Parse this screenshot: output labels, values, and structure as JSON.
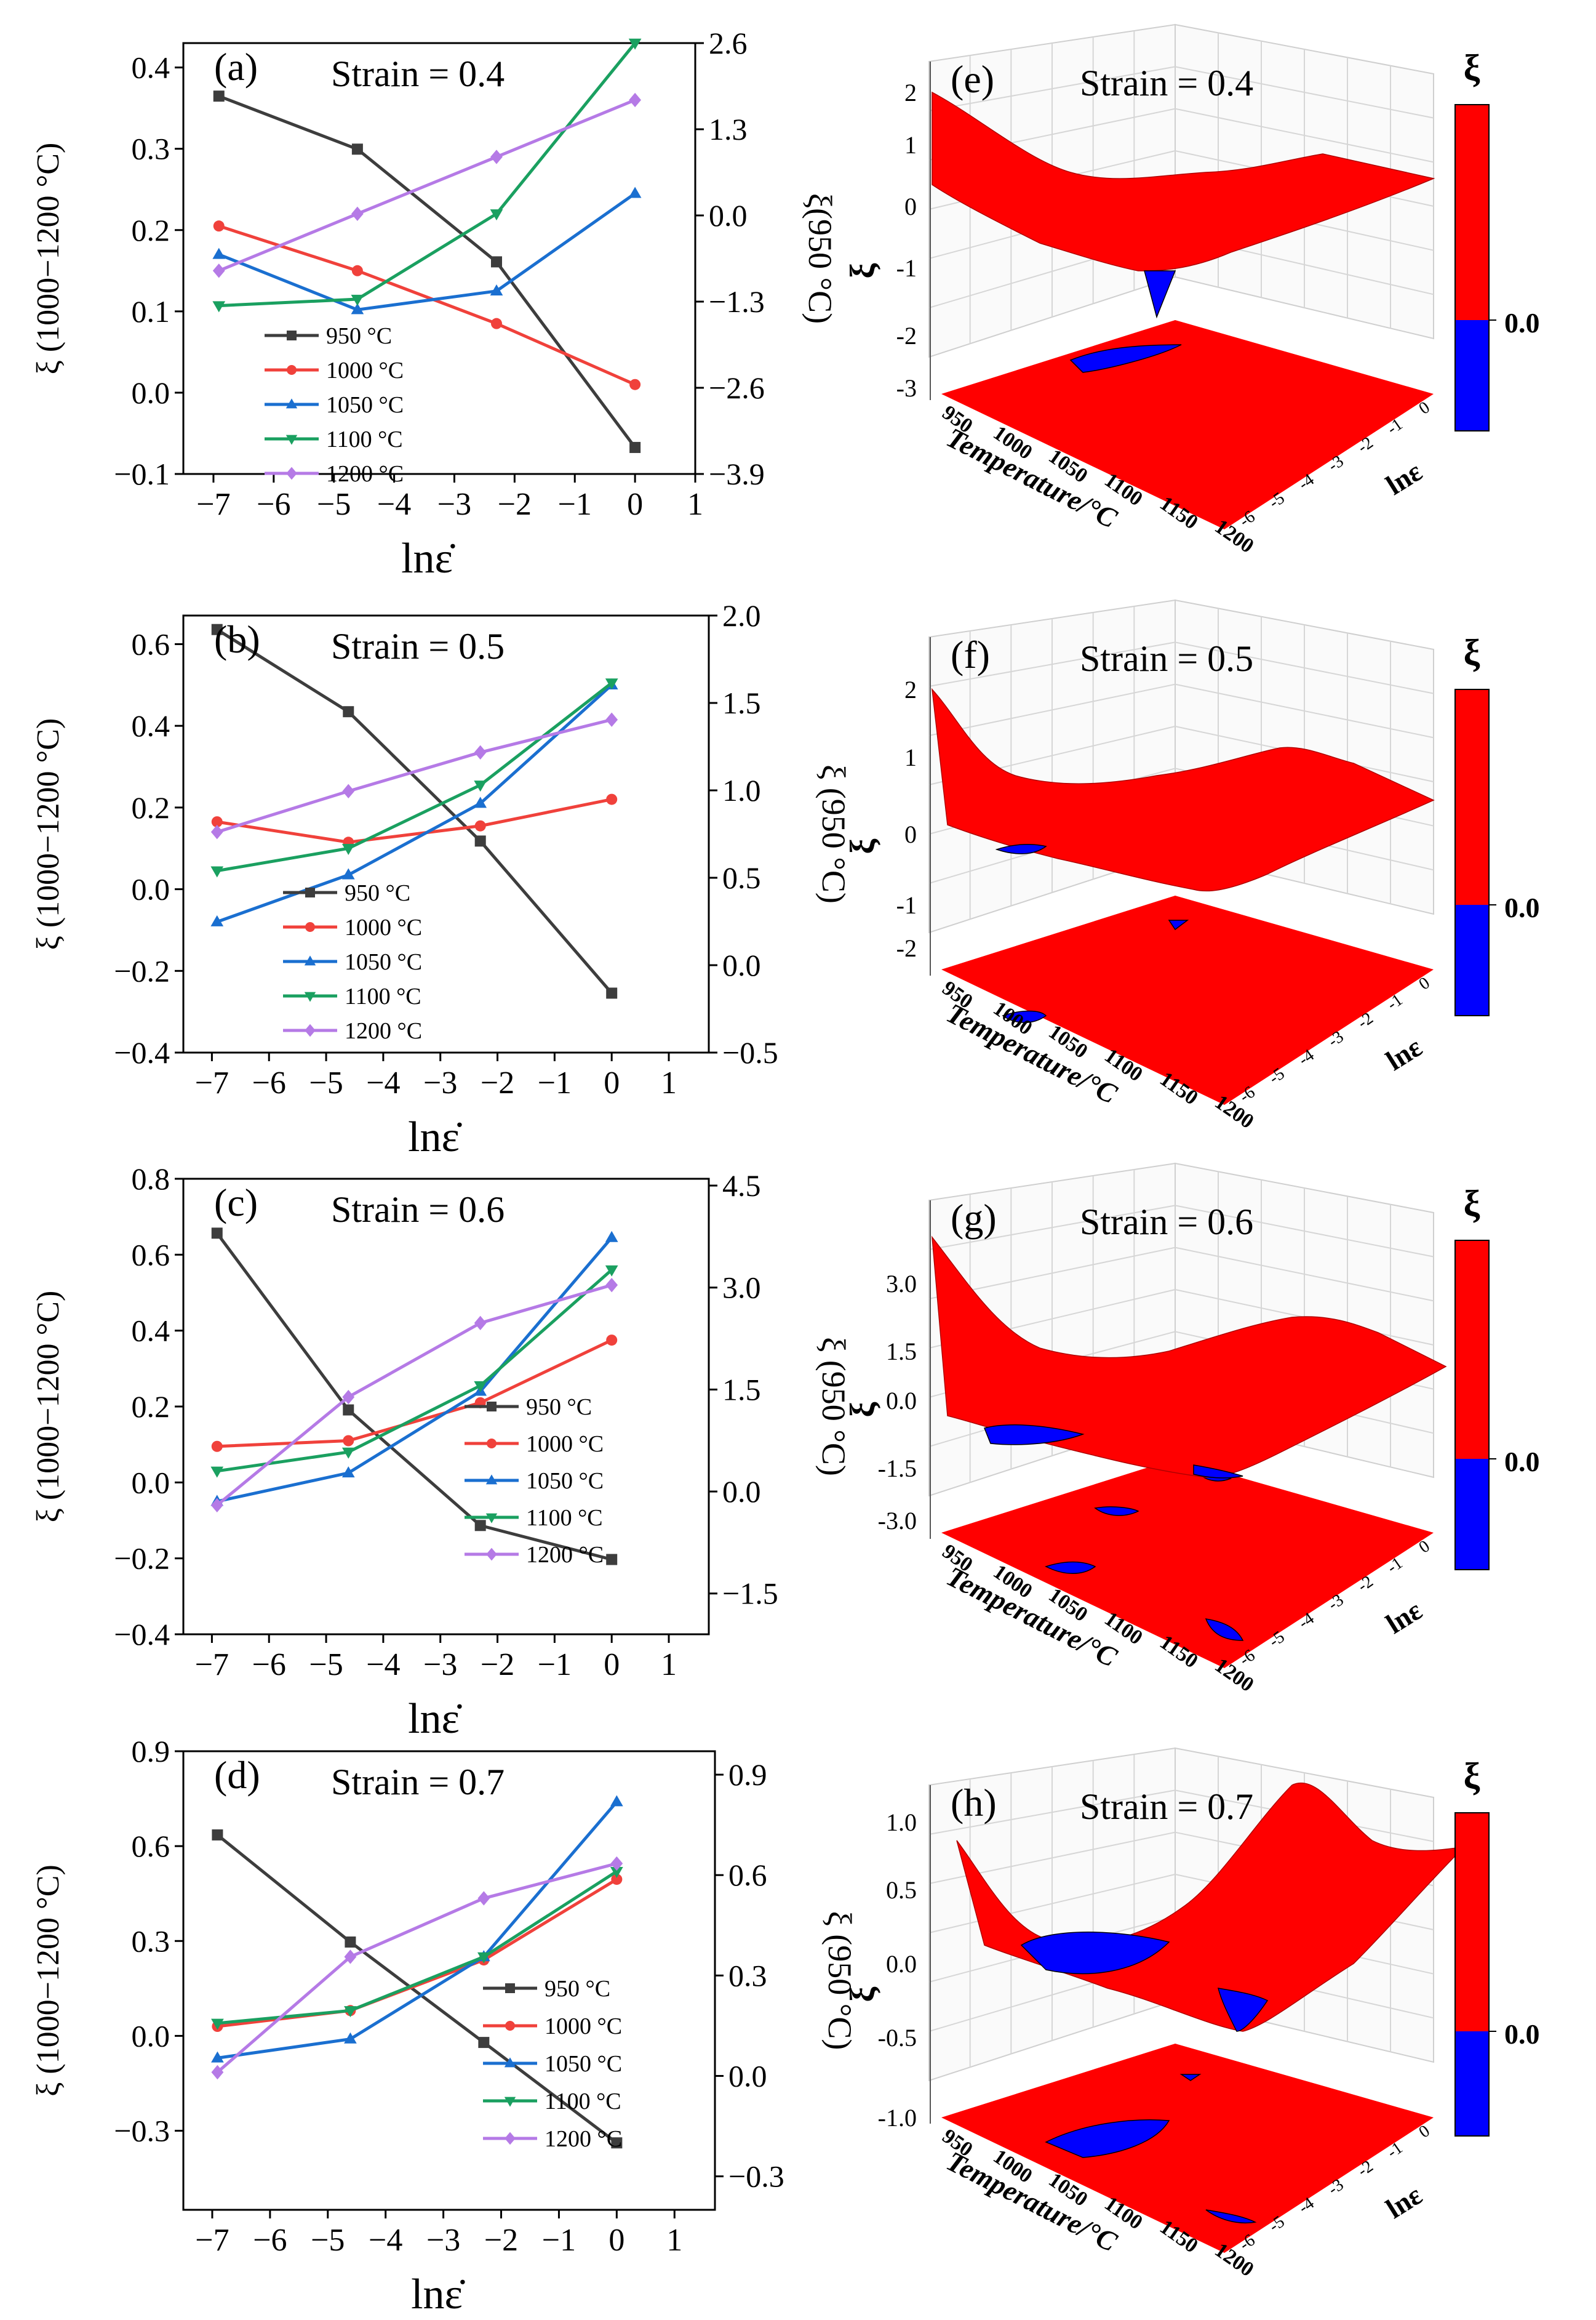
{
  "chart_data": [
    {
      "panel": "(a)",
      "type": "line",
      "title": "Strain = 0.4",
      "xlabel": "lnε̇",
      "ylabel_left": "ξ (1000−1200 °C)",
      "ylabel_right": "ξ(950 °C)",
      "xlim": [
        -7.5,
        1
      ],
      "xticks": [
        "−7",
        "−6",
        "−5",
        "−4",
        "−3",
        "−2",
        "−1",
        "0",
        "1"
      ],
      "ylim": [
        -0.1,
        0.43
      ],
      "yticks": [
        -0.1,
        0.0,
        0.1,
        0.2,
        0.3,
        0.4
      ],
      "ytick_labels": [
        "−0.1",
        "0.0",
        "0.1",
        "0.2",
        "0.3",
        "0.4"
      ],
      "ylim_right": [
        -3.9,
        2.6
      ],
      "yticks_right": [
        -3.9,
        -2.6,
        -1.3,
        0.0,
        1.3,
        2.6
      ],
      "ytick_right_labels": [
        "−3.9",
        "−2.6",
        "−1.3",
        "0.0",
        "1.3",
        "2.6"
      ],
      "x": [
        -6.91,
        -4.61,
        -2.3,
        0.0
      ],
      "legend_position": "bottom-center",
      "series": [
        {
          "name": "950 °C",
          "axis": "right",
          "color": "#3d3d3d",
          "marker": "square",
          "values": [
            1.8,
            1.0,
            -0.7,
            -3.5
          ]
        },
        {
          "name": "1000 °C",
          "axis": "left",
          "color": "#f0413b",
          "marker": "circle",
          "values": [
            0.205,
            0.15,
            0.085,
            0.01
          ]
        },
        {
          "name": "1050 °C",
          "axis": "left",
          "color": "#1a6fd0",
          "marker": "triangle-up",
          "values": [
            0.17,
            0.102,
            0.125,
            0.245
          ]
        },
        {
          "name": "1100 °C",
          "axis": "left",
          "color": "#1aa060",
          "marker": "triangle-down",
          "values": [
            0.107,
            0.115,
            0.22,
            0.43
          ]
        },
        {
          "name": "1200 °C",
          "axis": "left",
          "color": "#b57ae6",
          "marker": "diamond",
          "values": [
            0.15,
            0.22,
            0.29,
            0.36
          ]
        }
      ]
    },
    {
      "panel": "(b)",
      "type": "line",
      "title": "Strain = 0.5",
      "xlabel": "lnε̇",
      "ylabel_left": "ξ (1000−1200 °C)",
      "ylabel_right": "ξ (950 °C)",
      "xlim": [
        -7.5,
        1.7
      ],
      "xticks": [
        "−7",
        "−6",
        "−5",
        "−4",
        "−3",
        "−2",
        "−1",
        "0",
        "1"
      ],
      "ylim": [
        -0.4,
        0.67
      ],
      "yticks": [
        -0.4,
        -0.2,
        0.0,
        0.2,
        0.4,
        0.6
      ],
      "ytick_labels": [
        "−0.4",
        "−0.2",
        "0.0",
        "0.2",
        "0.4",
        "0.6"
      ],
      "ylim_right": [
        -0.5,
        2.0
      ],
      "yticks_right": [
        -0.5,
        0.0,
        0.5,
        1.0,
        1.5,
        2.0
      ],
      "ytick_right_labels": [
        "−0.5",
        "0.0",
        "0.5",
        "1.0",
        "1.5",
        "2.0"
      ],
      "x": [
        -6.91,
        -4.61,
        -2.3,
        0.0
      ],
      "legend_position": "bottom-center",
      "series": [
        {
          "name": "950 °C",
          "axis": "right",
          "color": "#3d3d3d",
          "marker": "square",
          "values": [
            1.92,
            1.45,
            0.71,
            -0.16
          ]
        },
        {
          "name": "1000 °C",
          "axis": "left",
          "color": "#f0413b",
          "marker": "circle",
          "values": [
            0.165,
            0.115,
            0.155,
            0.22
          ]
        },
        {
          "name": "1050 °C",
          "axis": "left",
          "color": "#1a6fd0",
          "marker": "triangle-up",
          "values": [
            -0.08,
            0.035,
            0.21,
            0.5
          ]
        },
        {
          "name": "1100 °C",
          "axis": "left",
          "color": "#1aa060",
          "marker": "triangle-down",
          "values": [
            0.045,
            0.1,
            0.255,
            0.505
          ]
        },
        {
          "name": "1200 °C",
          "axis": "left",
          "color": "#b57ae6",
          "marker": "diamond",
          "values": [
            0.14,
            0.24,
            0.335,
            0.415
          ]
        }
      ]
    },
    {
      "panel": "(c)",
      "type": "line",
      "title": "Strain = 0.6",
      "xlabel": "lnε̇",
      "ylabel_left": "ξ (1000−1200 °C)",
      "ylabel_right": "ξ (950 °C)",
      "xlim": [
        -7.5,
        1.7
      ],
      "xticks": [
        "−7",
        "−6",
        "−5",
        "−4",
        "−3",
        "−2",
        "−1",
        "0",
        "1"
      ],
      "ylim": [
        -0.4,
        0.8
      ],
      "yticks": [
        -0.4,
        -0.2,
        0.0,
        0.2,
        0.4,
        0.6,
        0.8
      ],
      "ytick_labels": [
        "−0.4",
        "−0.2",
        "0.0",
        "0.2",
        "0.4",
        "0.6",
        "0.8"
      ],
      "ylim_right": [
        -2.1,
        4.6
      ],
      "yticks_right": [
        -1.5,
        0.0,
        1.5,
        3.0,
        4.5
      ],
      "ytick_right_labels": [
        "−1.5",
        "0.0",
        "1.5",
        "3.0",
        "4.5"
      ],
      "x": [
        -6.91,
        -4.61,
        -2.3,
        0.0
      ],
      "legend_position": "right-center",
      "series": [
        {
          "name": "950 °C",
          "axis": "right",
          "color": "#3d3d3d",
          "marker": "square",
          "values": [
            3.8,
            1.2,
            -0.5,
            -1.0
          ]
        },
        {
          "name": "1000 °C",
          "axis": "left",
          "color": "#f0413b",
          "marker": "circle",
          "values": [
            0.095,
            0.11,
            0.21,
            0.375
          ]
        },
        {
          "name": "1050 °C",
          "axis": "left",
          "color": "#1a6fd0",
          "marker": "triangle-up",
          "values": [
            -0.05,
            0.025,
            0.24,
            0.645
          ]
        },
        {
          "name": "1100 °C",
          "axis": "left",
          "color": "#1aa060",
          "marker": "triangle-down",
          "values": [
            0.03,
            0.08,
            0.255,
            0.56
          ]
        },
        {
          "name": "1200 °C",
          "axis": "left",
          "color": "#b57ae6",
          "marker": "diamond",
          "values": [
            -0.06,
            0.225,
            0.42,
            0.52
          ]
        }
      ]
    },
    {
      "panel": "(d)",
      "type": "line",
      "title": "Strain = 0.7",
      "xlabel": "lnε̇",
      "ylabel_left": "ξ (1000−1200 °C)",
      "ylabel_right": "ξ (950 °C)",
      "xlim": [
        -7.5,
        1.7
      ],
      "xticks": [
        "−7",
        "−6",
        "−5",
        "−4",
        "−3",
        "−2",
        "−1",
        "0",
        "1"
      ],
      "ylim": [
        -0.55,
        0.9
      ],
      "yticks": [
        -0.3,
        0.0,
        0.3,
        0.6,
        0.9
      ],
      "ytick_labels": [
        "−0.3",
        "0.0",
        "0.3",
        "0.6",
        "0.9"
      ],
      "ylim_right": [
        -0.4,
        0.97
      ],
      "yticks_right": [
        -0.3,
        0.0,
        0.3,
        0.6,
        0.9
      ],
      "ytick_right_labels": [
        "−0.3",
        "0.0",
        "0.3",
        "0.6",
        "0.9"
      ],
      "x": [
        -6.91,
        -4.61,
        -2.3,
        0.0
      ],
      "legend_position": "right-center",
      "series": [
        {
          "name": "950 °C",
          "axis": "right",
          "color": "#3d3d3d",
          "marker": "square",
          "values": [
            0.72,
            0.4,
            0.1,
            -0.2
          ]
        },
        {
          "name": "1000 °C",
          "axis": "left",
          "color": "#f0413b",
          "marker": "circle",
          "values": [
            0.03,
            0.08,
            0.24,
            0.495
          ]
        },
        {
          "name": "1050 °C",
          "axis": "left",
          "color": "#1a6fd0",
          "marker": "triangle-up",
          "values": [
            -0.07,
            -0.01,
            0.25,
            0.74
          ]
        },
        {
          "name": "1100 °C",
          "axis": "left",
          "color": "#1aa060",
          "marker": "triangle-down",
          "values": [
            0.04,
            0.08,
            0.25,
            0.52
          ]
        },
        {
          "name": "1200 °C",
          "axis": "left",
          "color": "#b57ae6",
          "marker": "diamond",
          "values": [
            -0.115,
            0.25,
            0.435,
            0.545
          ]
        }
      ]
    }
  ],
  "surface_panels": [
    {
      "panel": "(e)",
      "title": "Strain = 0.4",
      "zlabel": "ξ",
      "zticks": [
        "2",
        "1",
        "0",
        "-1",
        "-2",
        "-3"
      ],
      "colorbar_label": "ξ",
      "colorbar_value": "0.0"
    },
    {
      "panel": "(f)",
      "title": "Strain = 0.5",
      "zlabel": "ξ",
      "zticks": [
        "2",
        "1",
        "0",
        "-1",
        "-2"
      ],
      "colorbar_label": "ξ",
      "colorbar_value": "0.0"
    },
    {
      "panel": "(g)",
      "title": "Strain = 0.6",
      "zlabel": "ξ",
      "zticks": [
        "3.0",
        "1.5",
        "0.0",
        "-1.5",
        "-3.0"
      ],
      "colorbar_label": "ξ",
      "colorbar_value": "0.0"
    },
    {
      "panel": "(h)",
      "title": "Strain = 0.7",
      "zlabel": "ξ",
      "zticks": [
        "1.0",
        "0.5",
        "0.0",
        "-0.5",
        "-1.0"
      ],
      "colorbar_label": "ξ",
      "colorbar_value": "0.0"
    }
  ],
  "surface_axes": {
    "temperature_label": "Temperature/°C",
    "temperature_ticks": [
      "950",
      "1000",
      "1050",
      "1100",
      "1150",
      "1200"
    ],
    "strain_rate_label": "lnε",
    "strain_rate_ticks": [
      "0",
      "-1",
      "-2",
      "-3",
      "-4",
      "-5",
      "-6"
    ]
  },
  "colors": {
    "positive": "#ff0000",
    "negative": "#0000ff",
    "grid": "#d6d6d6",
    "axis": "#000000"
  }
}
